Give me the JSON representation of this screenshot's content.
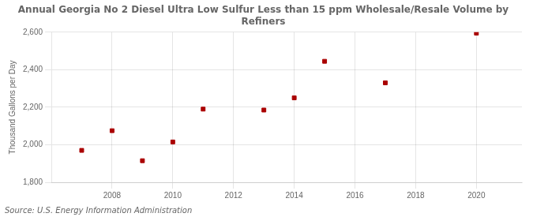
{
  "chart_data": {
    "type": "scatter",
    "title": "Annual Georgia No 2 Diesel Ultra Low Sulfur Less than 15 ppm Wholesale/Resale Volume by\nRefiners",
    "y_label": "Thousand Gallons per Day",
    "annotation": "Source: U.S. Energy Information Administration",
    "x": [
      2007,
      2008,
      2009,
      2010,
      2011,
      2013,
      2014,
      2015,
      2017,
      2020
    ],
    "values": [
      1970,
      2075,
      1915,
      2015,
      2190,
      2185,
      2250,
      2445,
      2330,
      2595
    ],
    "color": "#aa0000",
    "marker": "square",
    "xlim": [
      2006.0,
      2021.5
    ],
    "xticks": [
      2008,
      2010,
      2012,
      2014,
      2016,
      2018,
      2020
    ],
    "ylim": [
      1800,
      2600
    ],
    "yticks": [
      {
        "value": 1800,
        "label": "1,800"
      },
      {
        "value": 2000,
        "label": "2,000"
      },
      {
        "value": 2200,
        "label": "2,200"
      },
      {
        "value": 2400,
        "label": "2,400"
      },
      {
        "value": 2600,
        "label": "2,600"
      }
    ],
    "grid": true
  }
}
